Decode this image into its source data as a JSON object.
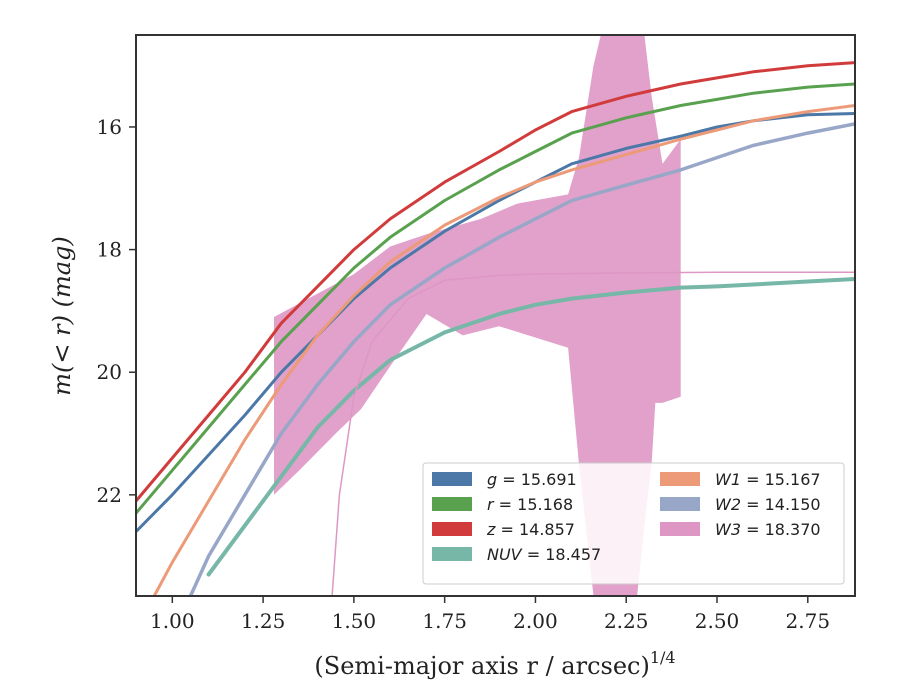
{
  "chart_data": {
    "type": "line",
    "xlabel": "(Semi-major axis r / arcsec)",
    "xlabel_exponent": "1/4",
    "ylabel": "m(< r) (mag)",
    "xlim": [
      0.9,
      2.88
    ],
    "ylim": [
      23.65,
      14.5
    ],
    "y_inverted": true,
    "x_ticks": [
      1.0,
      1.25,
      1.5,
      1.75,
      2.0,
      2.25,
      2.5,
      2.75
    ],
    "x_tick_labels": [
      "1.00",
      "1.25",
      "1.50",
      "1.75",
      "2.00",
      "2.25",
      "2.50",
      "2.75"
    ],
    "y_ticks": [
      16,
      18,
      20,
      22
    ],
    "y_tick_labels": [
      "16",
      "18",
      "20",
      "22"
    ],
    "grid": false,
    "legend_position": "lower-right",
    "series": [
      {
        "name": "g = 15.691",
        "band": "g",
        "value": "15.691",
        "color": "#4c78a8",
        "width": 3.0,
        "points": [
          [
            0.9,
            22.6
          ],
          [
            1.0,
            22.0
          ],
          [
            1.1,
            21.35
          ],
          [
            1.2,
            20.7
          ],
          [
            1.3,
            20.0
          ],
          [
            1.4,
            19.4
          ],
          [
            1.5,
            18.8
          ],
          [
            1.6,
            18.3
          ],
          [
            1.75,
            17.7
          ],
          [
            1.9,
            17.2
          ],
          [
            2.0,
            16.9
          ],
          [
            2.1,
            16.6
          ],
          [
            2.25,
            16.35
          ],
          [
            2.4,
            16.15
          ],
          [
            2.5,
            16.0
          ],
          [
            2.6,
            15.9
          ],
          [
            2.75,
            15.8
          ],
          [
            2.88,
            15.78
          ]
        ]
      },
      {
        "name": "r = 15.168",
        "band": "r",
        "value": "15.168",
        "color": "#59a14f",
        "width": 3.0,
        "points": [
          [
            0.9,
            22.3
          ],
          [
            1.0,
            21.6
          ],
          [
            1.1,
            20.9
          ],
          [
            1.2,
            20.2
          ],
          [
            1.3,
            19.5
          ],
          [
            1.4,
            18.9
          ],
          [
            1.5,
            18.3
          ],
          [
            1.6,
            17.8
          ],
          [
            1.75,
            17.2
          ],
          [
            1.9,
            16.7
          ],
          [
            2.0,
            16.4
          ],
          [
            2.1,
            16.1
          ],
          [
            2.25,
            15.85
          ],
          [
            2.4,
            15.65
          ],
          [
            2.5,
            15.55
          ],
          [
            2.6,
            15.45
          ],
          [
            2.75,
            15.35
          ],
          [
            2.88,
            15.3
          ]
        ]
      },
      {
        "name": "z = 14.857",
        "band": "z",
        "value": "14.857",
        "color": "#d13b3b",
        "width": 3.0,
        "points": [
          [
            0.9,
            22.1
          ],
          [
            1.0,
            21.4
          ],
          [
            1.1,
            20.7
          ],
          [
            1.2,
            20.0
          ],
          [
            1.3,
            19.2
          ],
          [
            1.4,
            18.6
          ],
          [
            1.5,
            18.0
          ],
          [
            1.6,
            17.5
          ],
          [
            1.75,
            16.9
          ],
          [
            1.9,
            16.4
          ],
          [
            2.0,
            16.05
          ],
          [
            2.1,
            15.75
          ],
          [
            2.25,
            15.5
          ],
          [
            2.4,
            15.3
          ],
          [
            2.5,
            15.2
          ],
          [
            2.6,
            15.1
          ],
          [
            2.75,
            15.0
          ],
          [
            2.88,
            14.95
          ]
        ]
      },
      {
        "name": "NUV = 18.457",
        "band": "NUV",
        "value": "18.457",
        "color": "#76b7a8",
        "width": 4.0,
        "points": [
          [
            1.1,
            23.3
          ],
          [
            1.2,
            22.5
          ],
          [
            1.3,
            21.7
          ],
          [
            1.4,
            20.9
          ],
          [
            1.5,
            20.3
          ],
          [
            1.6,
            19.8
          ],
          [
            1.75,
            19.35
          ],
          [
            1.9,
            19.05
          ],
          [
            2.0,
            18.9
          ],
          [
            2.1,
            18.8
          ],
          [
            2.25,
            18.7
          ],
          [
            2.4,
            18.62
          ],
          [
            2.5,
            18.6
          ],
          [
            2.6,
            18.57
          ],
          [
            2.75,
            18.52
          ],
          [
            2.88,
            18.48
          ]
        ]
      },
      {
        "name": "W1 = 15.167",
        "band": "W1",
        "value": "15.167",
        "color": "#ec9a78",
        "width": 3.0,
        "points": [
          [
            0.95,
            23.65
          ],
          [
            1.0,
            23.1
          ],
          [
            1.1,
            22.1
          ],
          [
            1.2,
            21.1
          ],
          [
            1.3,
            20.2
          ],
          [
            1.4,
            19.4
          ],
          [
            1.5,
            18.75
          ],
          [
            1.6,
            18.2
          ],
          [
            1.75,
            17.6
          ],
          [
            1.9,
            17.15
          ],
          [
            2.0,
            16.9
          ],
          [
            2.1,
            16.7
          ],
          [
            2.25,
            16.45
          ],
          [
            2.4,
            16.2
          ],
          [
            2.5,
            16.05
          ],
          [
            2.6,
            15.9
          ],
          [
            2.75,
            15.75
          ],
          [
            2.88,
            15.65
          ]
        ]
      },
      {
        "name": "W2 = 14.150",
        "band": "W2",
        "value": "14.150",
        "color": "#98a6c8",
        "width": 3.5,
        "points": [
          [
            1.05,
            23.65
          ],
          [
            1.1,
            23.0
          ],
          [
            1.2,
            22.0
          ],
          [
            1.3,
            21.0
          ],
          [
            1.4,
            20.2
          ],
          [
            1.5,
            19.5
          ],
          [
            1.6,
            18.9
          ],
          [
            1.75,
            18.3
          ],
          [
            1.9,
            17.8
          ],
          [
            2.0,
            17.5
          ],
          [
            2.1,
            17.2
          ],
          [
            2.25,
            16.95
          ],
          [
            2.4,
            16.7
          ],
          [
            2.5,
            16.5
          ],
          [
            2.6,
            16.3
          ],
          [
            2.75,
            16.1
          ],
          [
            2.88,
            15.95
          ]
        ]
      },
      {
        "name": "W3 = 18.370",
        "band": "W3",
        "value": "18.370",
        "color": "#de97c4",
        "width": 1.5,
        "points": [
          [
            1.44,
            23.65
          ],
          [
            1.46,
            22.0
          ],
          [
            1.5,
            20.4
          ],
          [
            1.55,
            19.5
          ],
          [
            1.65,
            18.8
          ],
          [
            1.75,
            18.5
          ],
          [
            1.9,
            18.42
          ],
          [
            2.0,
            18.4
          ],
          [
            2.25,
            18.38
          ],
          [
            2.5,
            18.37
          ],
          [
            2.88,
            18.37
          ]
        ],
        "band_upper": [
          [
            1.28,
            19.1
          ],
          [
            1.5,
            18.4
          ],
          [
            1.6,
            17.95
          ],
          [
            1.7,
            17.75
          ],
          [
            1.85,
            17.5
          ],
          [
            1.95,
            17.25
          ],
          [
            2.09,
            17.1
          ],
          [
            2.12,
            16.5
          ],
          [
            2.16,
            15.0
          ],
          [
            2.18,
            14.5
          ],
          [
            2.3,
            14.5
          ],
          [
            2.32,
            15.5
          ],
          [
            2.35,
            16.6
          ],
          [
            2.4,
            16.2
          ]
        ],
        "band_lower": [
          [
            2.4,
            20.4
          ],
          [
            2.35,
            20.5
          ],
          [
            2.33,
            20.5
          ],
          [
            2.32,
            21.5
          ],
          [
            2.3,
            22.5
          ],
          [
            2.28,
            23.65
          ],
          [
            2.16,
            23.65
          ],
          [
            2.12,
            21.5
          ],
          [
            2.09,
            19.6
          ],
          [
            1.9,
            19.25
          ],
          [
            1.8,
            19.4
          ],
          [
            1.7,
            19.05
          ],
          [
            1.6,
            19.9
          ],
          [
            1.52,
            20.6
          ],
          [
            1.45,
            21.0
          ],
          [
            1.35,
            21.6
          ],
          [
            1.28,
            22.0
          ]
        ]
      }
    ]
  }
}
